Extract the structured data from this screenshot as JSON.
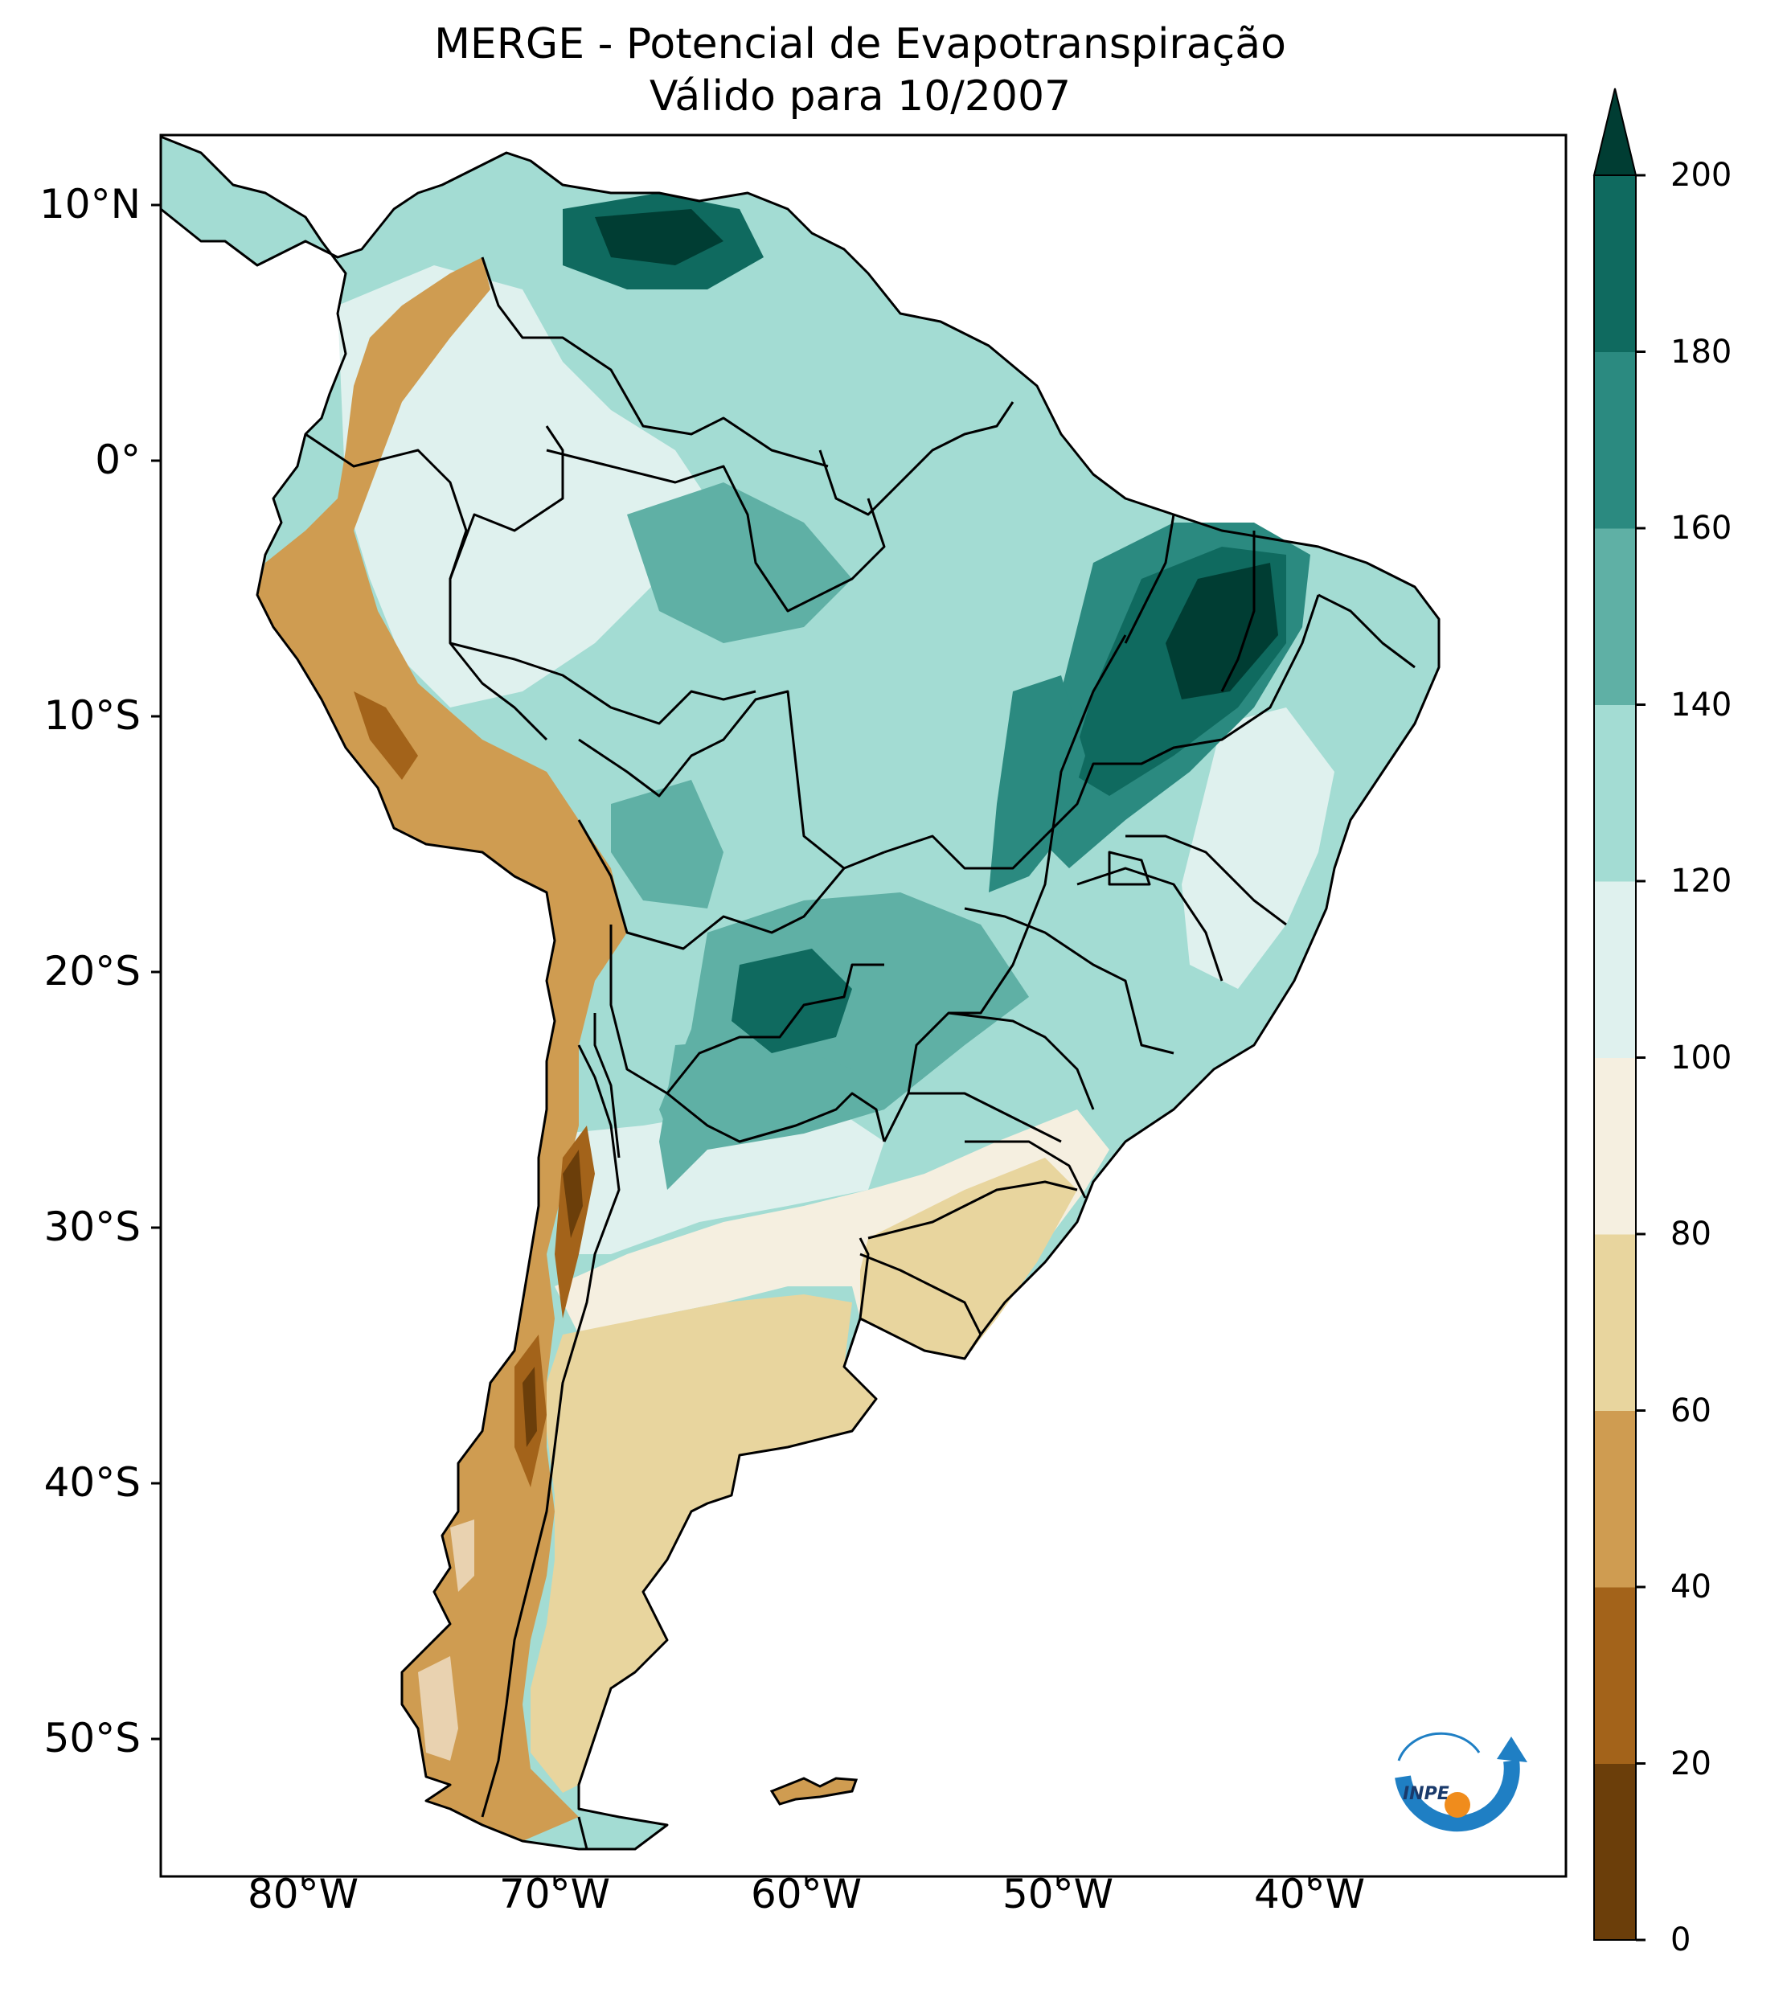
{
  "title": {
    "line1": "MERGE - Potencial de Evapotranspiração",
    "line2": "Válido para 10/2007"
  },
  "map": {
    "region": "South America",
    "variable": "Potencial de Evapotranspiração",
    "lon_range": [
      -85,
      -29
    ],
    "lat_range": [
      -56,
      13
    ],
    "lat_labels": [
      "10°N",
      "0°",
      "10°S",
      "20°S",
      "30°S",
      "40°S",
      "50°S"
    ],
    "lon_labels": [
      "80°W",
      "70°W",
      "60°W",
      "50°W",
      "40°W"
    ]
  },
  "colorbar": {
    "ticks": [
      "0",
      "20",
      "40",
      "60",
      "80",
      "100",
      "120",
      "140",
      "160",
      "180",
      "200"
    ],
    "colors": [
      "#6b3e0a",
      "#a3631a",
      "#cf9c51",
      "#e8d59e",
      "#f5efe0",
      "#dff1ee",
      "#a3dcd3",
      "#5fb0a5",
      "#2b8a80",
      "#0f6a5f",
      "#003d33"
    ],
    "extend": "max"
  },
  "logo": {
    "text": "INPE",
    "ring_color": "#1f7fc4",
    "dot_color": "#f08c1c"
  }
}
